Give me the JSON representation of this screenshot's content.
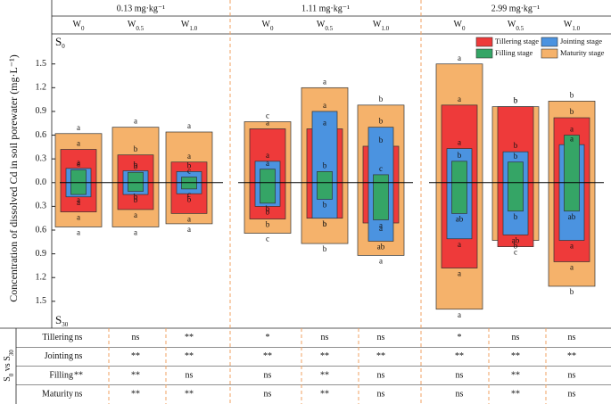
{
  "chart_data": {
    "type": "floating-bar",
    "group_titles": [
      "0.13 mg·kg⁻¹",
      "1.11 mg·kg⁻¹",
      "2.99 mg·kg⁻¹"
    ],
    "treatments": [
      {
        "base": "W",
        "sub": "0"
      },
      {
        "base": "W",
        "sub": "0.5"
      },
      {
        "base": "W",
        "sub": "1.0"
      },
      {
        "base": "W",
        "sub": "0"
      },
      {
        "base": "W",
        "sub": "0.5"
      },
      {
        "base": "W",
        "sub": "1.0"
      },
      {
        "base": "W",
        "sub": "0"
      },
      {
        "base": "W",
        "sub": "0.5"
      },
      {
        "base": "W",
        "sub": "1.0"
      }
    ],
    "y_title": "Concentration of dissolved Cd in soil porewater (mg·L⁻¹)",
    "top_label": {
      "base": "S",
      "sub": "0"
    },
    "bottom_label": {
      "base": "S",
      "sub": "30"
    },
    "ylim": [
      -1.84,
      1.88
    ],
    "yticks": [
      {
        "value": -1.5,
        "label": "1.5"
      },
      {
        "value": -1.2,
        "label": "1.2"
      },
      {
        "value": -0.9,
        "label": "0.9"
      },
      {
        "value": -0.6,
        "label": "0.6"
      },
      {
        "value": -0.3,
        "label": "0.3"
      },
      {
        "value": 0,
        "label": "0.0"
      },
      0.3,
      0.6,
      0.9,
      1.2,
      1.5
    ],
    "legend": "upper right",
    "series": [
      {
        "name": "Tillering stage",
        "color": "#ee3a3a",
        "values": [
          0.42,
          0.35,
          0.26,
          0.68,
          0.68,
          0.46,
          0.98,
          0.96,
          0.82
        ],
        "bottom_values": [
          -0.37,
          -0.34,
          -0.39,
          -0.46,
          -0.45,
          -0.51,
          -1.08,
          -0.81,
          -1.0
        ],
        "top_labels": [
          "a",
          "b",
          "a",
          "a",
          "a",
          "b",
          "a",
          "b",
          "b"
        ],
        "bottom_labels": [
          "a",
          "a",
          "a",
          "b",
          "b",
          "a",
          "a",
          "c",
          "a"
        ]
      },
      {
        "name": "Jointing stage",
        "color": "#4b93e0",
        "values": [
          0.18,
          0.15,
          0.14,
          0.27,
          0.9,
          0.7,
          0.43,
          0.39,
          0.48
        ],
        "bottom_values": [
          -0.18,
          -0.15,
          -0.14,
          -0.3,
          -0.45,
          -0.74,
          -0.71,
          -0.66,
          -0.73
        ],
        "top_labels": [
          "a",
          "b",
          "b",
          "a",
          "a",
          "b",
          "a",
          "b",
          "a"
        ],
        "bottom_labels": [
          "a",
          "b",
          "b",
          "b",
          "b",
          "ab",
          "a",
          "ab",
          "a"
        ]
      },
      {
        "name": "Filling stage",
        "color": "#35a566",
        "values": [
          0.16,
          0.13,
          0.07,
          0.17,
          0.14,
          0.1,
          0.27,
          0.26,
          0.6
        ],
        "bottom_values": [
          -0.15,
          -0.11,
          -0.08,
          -0.26,
          -0.21,
          -0.47,
          -0.39,
          -0.36,
          -0.36
        ],
        "top_labels": [
          "a",
          "b",
          "c",
          "a",
          "b",
          "c",
          "b",
          "b",
          "a"
        ],
        "bottom_labels": [
          "a",
          "b",
          "c",
          "b",
          "b",
          "a",
          "ab",
          "b",
          "ab"
        ]
      },
      {
        "name": "Maturity stage",
        "color": "#f5b26b",
        "values": [
          0.62,
          0.7,
          0.64,
          0.77,
          1.2,
          0.98,
          1.5,
          0.96,
          1.03
        ],
        "bottom_values": [
          -0.56,
          -0.56,
          -0.52,
          -0.64,
          -0.77,
          -0.92,
          -1.6,
          -0.73,
          -1.31
        ],
        "top_labels": [
          "a",
          "a",
          "a",
          "c",
          "a",
          "b",
          "a",
          "b",
          "b"
        ],
        "bottom_labels": [
          "a",
          "a",
          "a",
          "c",
          "b",
          "a",
          "a",
          "b",
          "b"
        ]
      }
    ],
    "significance": {
      "label": {
        "a": "S",
        "a_sub": "0",
        "mid": " vs S",
        "b_sub": "30"
      },
      "rows": [
        {
          "name": "Tillering",
          "values": [
            "ns",
            "ns",
            "**",
            "*",
            "ns",
            "ns",
            "*",
            "ns",
            "ns"
          ]
        },
        {
          "name": "Jointing",
          "values": [
            "ns",
            "**",
            "**",
            "**",
            "**",
            "**",
            "**",
            "**",
            "**"
          ]
        },
        {
          "name": "Filling",
          "values": [
            "**",
            "**",
            "ns",
            "ns",
            "**",
            "ns",
            "ns",
            "**",
            "ns"
          ]
        },
        {
          "name": "Maturity",
          "values": [
            "ns",
            "**",
            "**",
            "ns",
            "**",
            "ns",
            "ns",
            "**",
            "ns"
          ]
        }
      ]
    }
  }
}
